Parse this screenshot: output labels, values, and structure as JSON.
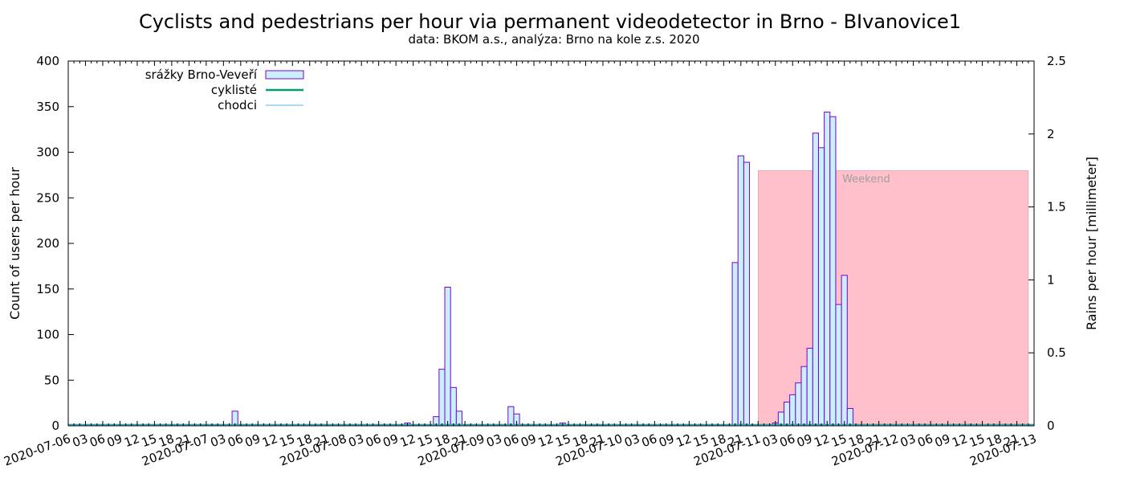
{
  "chart_data": {
    "type": "bar",
    "title": "Cyclists and pedestrians per hour via permanent videodetector in Brno - BIvanovice1",
    "subtitle": "data: BKOM a.s., analýza: Brno na kole z.s. 2020",
    "ylabel": "Count of users per hour",
    "y2label": "Rains per hour [millimeter]",
    "ylim": [
      0,
      400
    ],
    "y2lim": [
      0,
      2.5
    ],
    "yticks": [
      "0",
      "50",
      "100",
      "150",
      "200",
      "250",
      "300",
      "350",
      "400"
    ],
    "y2ticks": [
      "0",
      "0.5",
      "1",
      "1.5",
      "2",
      "2.5"
    ],
    "xlim": [
      "2020-07-06 00:00",
      "2020-07-13 00:00"
    ],
    "date_labels": [
      "2020-07-06",
      "2020-07-07",
      "2020-07-08",
      "2020-07-09",
      "2020-07-10",
      "2020-07-11",
      "2020-07-12",
      "2020-07-13"
    ],
    "hour_labels": [
      "03",
      "06",
      "09",
      "12",
      "15",
      "18",
      "21"
    ],
    "legend_position": "top-left",
    "legend": [
      {
        "name": "srážky Brno-Veveří",
        "kind": "box"
      },
      {
        "name": "cyklisté",
        "kind": "line"
      },
      {
        "name": "chodci",
        "kind": "line"
      }
    ],
    "annotation": {
      "label": "Weekend",
      "x_start": "2020-07-11 00:00",
      "x_end": "2020-07-12 23:00",
      "y_top": 280,
      "color": "#ffc0cb"
    },
    "rain_bars": {
      "name": "srážky Brno-Veveří",
      "fill": "#c8f0ff",
      "stroke": "#7b00d4",
      "x": [
        "2020-07-07 05:00",
        "2020-07-08 11:00",
        "2020-07-08 16:00",
        "2020-07-08 17:00",
        "2020-07-08 18:00",
        "2020-07-08 19:00",
        "2020-07-08 20:00",
        "2020-07-09 05:00",
        "2020-07-09 06:00",
        "2020-07-09 14:00",
        "2020-07-10 20:00",
        "2020-07-10 21:00",
        "2020-07-10 22:00",
        "2020-07-11 03:00",
        "2020-07-11 04:00",
        "2020-07-11 05:00",
        "2020-07-11 06:00",
        "2020-07-11 07:00",
        "2020-07-11 08:00",
        "2020-07-11 09:00",
        "2020-07-11 10:00",
        "2020-07-11 11:00",
        "2020-07-11 12:00",
        "2020-07-11 13:00",
        "2020-07-11 14:00",
        "2020-07-11 15:00",
        "2020-07-11 16:00"
      ],
      "values": [
        16,
        3,
        10,
        62,
        152,
        42,
        16,
        21,
        13,
        3,
        179,
        296,
        289,
        3,
        15,
        26,
        34,
        47,
        65,
        85,
        321,
        305,
        344,
        339,
        133,
        165,
        19
      ]
    },
    "series": [
      {
        "name": "cyklisté",
        "color": "#009e73",
        "width": 2.5,
        "value": 0
      },
      {
        "name": "chodci",
        "color": "#56b4e9",
        "width": 1,
        "value": 0
      }
    ]
  }
}
